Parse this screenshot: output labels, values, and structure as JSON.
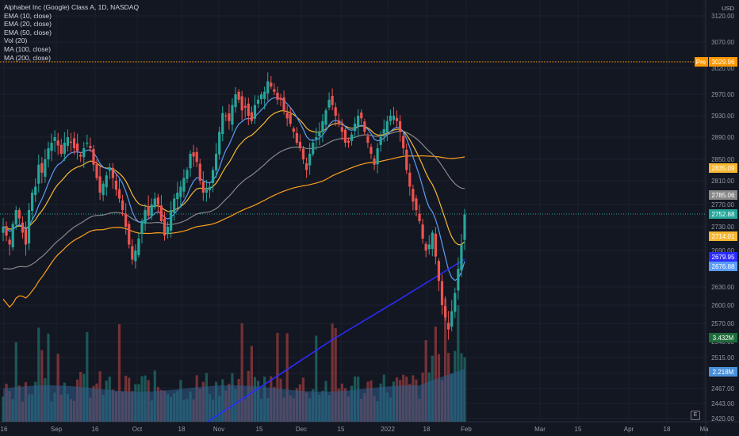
{
  "header": {
    "title": "Alphabet Inc (Google) Class A, 1D, NASDAQ",
    "indicators": [
      "EMA (10, close)",
      "EMA (20, close)",
      "EMA (50, close)",
      "Vol (20)",
      "MA (100, close)",
      "MA (200, close)"
    ],
    "currency": "USD",
    "earnings_icon": "E"
  },
  "colors": {
    "background": "#131722",
    "up": "#26a69a",
    "down": "#ef5350",
    "ema10": "#5b9cf6",
    "ema20": "#f7b731",
    "ema50": "#888888",
    "ma100": "#ff9f1c",
    "ma200": "#2b2bff",
    "premarket_line": "#ff9800"
  },
  "chart_data": {
    "type": "candlestick",
    "title": "Alphabet Inc (Google) Class A, 1D, NASDAQ",
    "y_axis": {
      "ticks": [
        3120.0,
        3070.0,
        3020.0,
        2970.0,
        2930.0,
        2890.0,
        2850.0,
        2810.0,
        2770.0,
        2730.0,
        2690.0,
        2630.0,
        2600.0,
        2570.0,
        2540.0,
        2515.0,
        2490.0,
        2467.0,
        2443.0,
        2420.0
      ],
      "tick_labels": [
        "3120.00",
        "3070.00",
        "3020.00",
        "2970.00",
        "2930.00",
        "2890.00",
        "2850.00",
        "2810.00",
        "2770.00",
        "2730.00",
        "2690.00",
        "2630.00",
        "2600.00",
        "2570.00",
        "2540.00",
        "2515.00",
        "2490.00",
        "2467.00",
        "2443.00",
        "2420.00"
      ]
    },
    "x_axis": {
      "tick_labels": [
        "16",
        "Sep",
        "16",
        "Oct",
        "18",
        "Nov",
        "15",
        "Dec",
        "15",
        "2022",
        "18",
        "Feb",
        "Mar",
        "15",
        "Apr",
        "18",
        "Ma"
      ]
    },
    "price_tags": [
      {
        "label": "Pre",
        "value": "3029.96",
        "color": "#ff9800"
      },
      {
        "label": "",
        "value": "2835.09",
        "color": "#f7b731"
      },
      {
        "label": "",
        "value": "2785.06",
        "color": "#888888"
      },
      {
        "label": "",
        "value": "2752.88",
        "color": "#26a69a"
      },
      {
        "label": "",
        "value": "2714.01",
        "color": "#f7b731"
      },
      {
        "label": "",
        "value": "2679.95",
        "color": "#2b2bff"
      },
      {
        "label": "",
        "value": "2676.88",
        "color": "#5b9cf6"
      },
      {
        "label": "",
        "value": "3.432M",
        "color": "#1e6b3a"
      },
      {
        "label": "",
        "value": "2.218M",
        "color": "#4a90d9"
      }
    ],
    "closes": [
      2730,
      2715,
      2700,
      2735,
      2760,
      2745,
      2720,
      2700,
      2760,
      2790,
      2800,
      2840,
      2825,
      2850,
      2870,
      2880,
      2890,
      2875,
      2860,
      2880,
      2890,
      2880,
      2870,
      2865,
      2855,
      2870,
      2880,
      2870,
      2840,
      2815,
      2790,
      2805,
      2820,
      2835,
      2815,
      2795,
      2780,
      2760,
      2730,
      2700,
      2675,
      2690,
      2710,
      2740,
      2760,
      2750,
      2770,
      2780,
      2770,
      2740,
      2715,
      2730,
      2760,
      2780,
      2790,
      2800,
      2815,
      2830,
      2860,
      2855,
      2845,
      2810,
      2790,
      2795,
      2800,
      2830,
      2860,
      2900,
      2935,
      2930,
      2920,
      2950,
      2970,
      2960,
      2940,
      2945,
      2930,
      2920,
      2950,
      2960,
      2970,
      2975,
      2995,
      2985,
      2975,
      2960,
      2960,
      2940,
      2925,
      2915,
      2900,
      2880,
      2870,
      2850,
      2830,
      2860,
      2880,
      2890,
      2900,
      2920,
      2940,
      2960,
      2950,
      2930,
      2915,
      2900,
      2880,
      2880,
      2895,
      2915,
      2930,
      2925,
      2900,
      2880,
      2860,
      2840,
      2870,
      2890,
      2905,
      2920,
      2930,
      2930,
      2920,
      2900,
      2870,
      2830,
      2800,
      2775,
      2760,
      2740,
      2710,
      2690,
      2700,
      2720,
      2680,
      2640,
      2600,
      2580,
      2560,
      2590,
      2620,
      2660,
      2700,
      2752
    ]
  }
}
